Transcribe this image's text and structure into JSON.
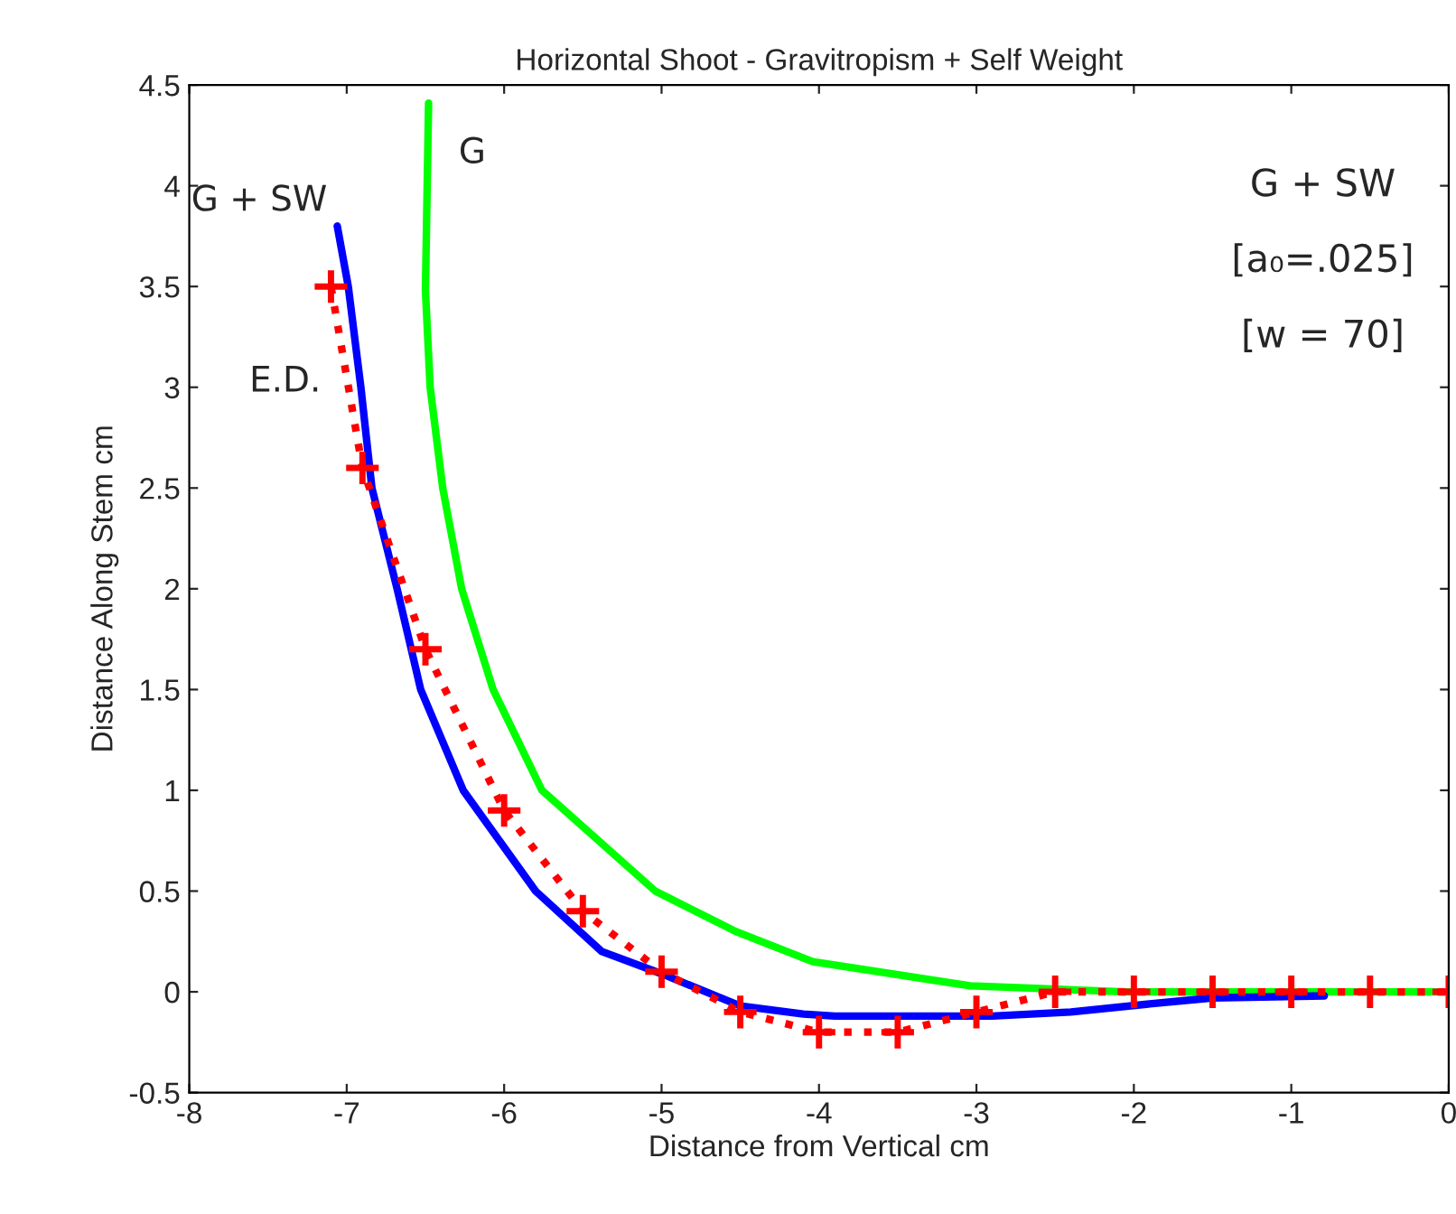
{
  "chart_data": {
    "type": "line",
    "title": "Horizontal Shoot - Gravitropism + Self Weight",
    "xlabel": "Distance from Vertical cm",
    "ylabel": "Distance Along Stem cm",
    "xlim": [
      -8,
      0
    ],
    "ylim": [
      -0.5,
      4.5
    ],
    "xticks": [
      -8,
      -7,
      -6,
      -5,
      -4,
      -3,
      -2,
      -1,
      0
    ],
    "yticks": [
      -0.5,
      0,
      0.5,
      1,
      1.5,
      2,
      2.5,
      3,
      3.5,
      4,
      4.5
    ],
    "grid": false,
    "legend": false,
    "series": [
      {
        "name": "G",
        "color": "#00ff00",
        "line_style": "solid",
        "marker": "none",
        "x": [
          -6.48,
          -6.5,
          -6.47,
          -6.39,
          -6.27,
          -6.07,
          -5.76,
          -5.04,
          -4.53,
          -4.04,
          -3.46,
          -3.04,
          -2.7,
          -2.05,
          -1,
          0
        ],
        "values": [
          4.41,
          3.48,
          3.0,
          2.5,
          2.0,
          1.5,
          1.0,
          0.5,
          0.3,
          0.15,
          0.08,
          0.03,
          0.02,
          0,
          0,
          0
        ]
      },
      {
        "name": "G + SW",
        "color": "#0000ff",
        "line_style": "solid",
        "marker": "none",
        "x": [
          -7.06,
          -6.99,
          -6.91,
          -6.84,
          -6.68,
          -6.53,
          -6.26,
          -5.8,
          -5.38,
          -5.0,
          -4.5,
          -4.1,
          -3.9,
          -2.9,
          -2.4,
          -1.9,
          -1.5,
          -0.79
        ],
        "values": [
          3.8,
          3.5,
          3.0,
          2.5,
          2.0,
          1.5,
          1.0,
          0.5,
          0.2,
          0.09,
          -0.07,
          -0.11,
          -0.12,
          -0.12,
          -0.1,
          -0.06,
          -0.03,
          -0.02
        ]
      },
      {
        "name": "E.D.",
        "color": "#ff0000",
        "line_style": "dotted",
        "marker": "cross",
        "x": [
          -7.1,
          -6.9,
          -6.5,
          -6.0,
          -5.5,
          -5.0,
          -4.5,
          -4.0,
          -3.5,
          -3.0,
          -2.5,
          -2.0,
          -1.5,
          -1.0,
          -0.5,
          0
        ],
        "values": [
          3.5,
          2.6,
          1.7,
          0.9,
          0.4,
          0.1,
          -0.1,
          -0.2,
          -0.2,
          -0.1,
          0,
          0,
          0,
          0,
          0,
          0
        ]
      }
    ],
    "annotations": [
      "G + SW",
      "[a₀=.025]",
      "[w = 70]"
    ]
  }
}
